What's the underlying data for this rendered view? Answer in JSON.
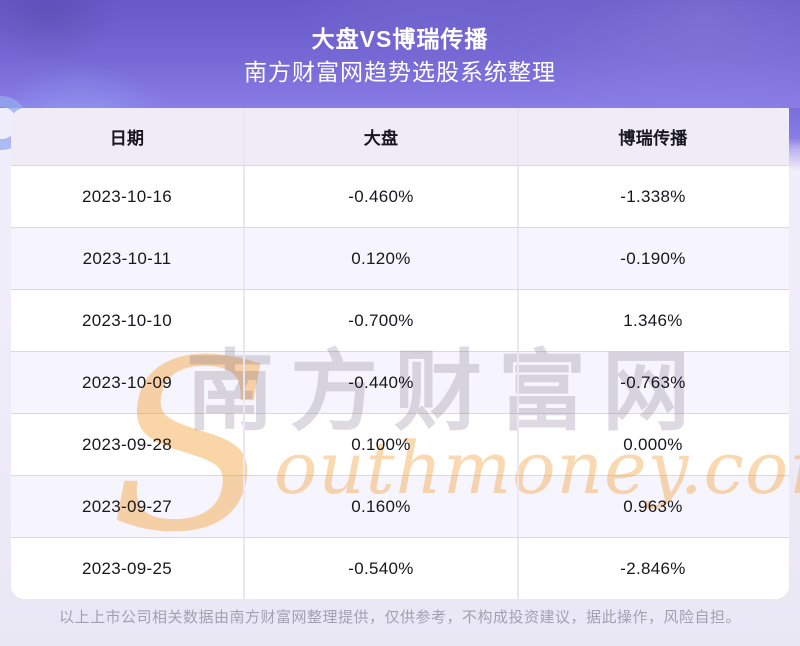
{
  "header": {
    "title": "大盘VS博瑞传播",
    "subtitle": "南方财富网趋势选股系统整理"
  },
  "table": {
    "columns": [
      "日期",
      "大盘",
      "博瑞传播"
    ],
    "rows": [
      {
        "date": "2023-10-16",
        "market": "-0.460%",
        "stock": "-1.338%"
      },
      {
        "date": "2023-10-11",
        "market": "0.120%",
        "stock": "-0.190%"
      },
      {
        "date": "2023-10-10",
        "market": "-0.700%",
        "stock": "1.346%"
      },
      {
        "date": "2023-10-09",
        "market": "-0.440%",
        "stock": "-0.763%"
      },
      {
        "date": "2023-09-28",
        "market": "0.100%",
        "stock": "0.000%"
      },
      {
        "date": "2023-09-27",
        "market": "0.160%",
        "stock": "0.963%"
      },
      {
        "date": "2023-09-25",
        "market": "-0.540%",
        "stock": "-2.846%"
      }
    ]
  },
  "chart_data": {
    "type": "table",
    "title": "大盘VS博瑞传播",
    "categories": [
      "2023-10-16",
      "2023-10-11",
      "2023-10-10",
      "2023-10-09",
      "2023-09-28",
      "2023-09-27",
      "2023-09-25"
    ],
    "series": [
      {
        "name": "大盘",
        "values": [
          -0.46,
          0.12,
          -0.7,
          -0.44,
          0.1,
          0.16,
          -0.54
        ]
      },
      {
        "name": "博瑞传播",
        "values": [
          -1.338,
          -0.19,
          1.346,
          -0.763,
          0.0,
          0.963,
          -2.846
        ]
      }
    ],
    "unit": "%"
  },
  "watermark": {
    "cn": "南方财富网",
    "en_initial": "S",
    "en_rest": "outhmoney.com"
  },
  "footer": {
    "disclaimer": "以上上市公司相关数据由南方财富网整理提供，仅供参考，不构成投资建议，据此操作，风险自担。"
  },
  "colors": {
    "hero_gradient_top": "#675ac9",
    "hero_gradient_bottom": "#897ce6",
    "page_background": "#efecf9",
    "table_header_bg": "#efecf8",
    "row_alt_bg": "#f6f4fc",
    "row_bg": "#ffffff",
    "divider": "#dad7ea",
    "text": "#17171d",
    "footer_text": "#a3a0b2",
    "watermark_orange": "#f39c30",
    "watermark_gray": "#625d76"
  }
}
